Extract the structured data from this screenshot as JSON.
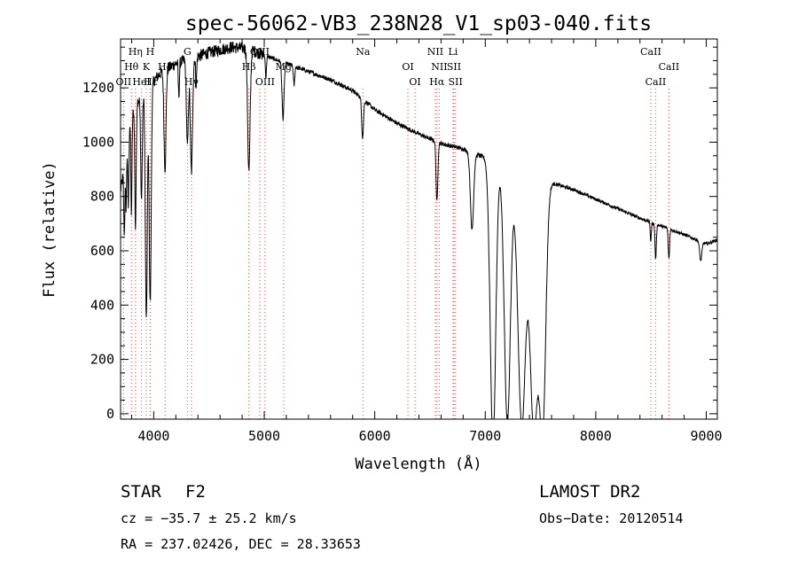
{
  "chart_data": {
    "type": "line",
    "title": "spec-56062-VB3_238N28_V1_sp03-040.fits",
    "xlabel": "Wavelength (Å)",
    "ylabel": "Flux (relative)",
    "xlim": [
      3700,
      9100
    ],
    "ylim": [
      -20,
      1380
    ],
    "x_ticks": [
      4000,
      5000,
      6000,
      7000,
      8000,
      9000
    ],
    "y_ticks": [
      0,
      200,
      400,
      600,
      800,
      1000,
      1200
    ],
    "grid": false,
    "continuum": [
      [
        3700,
        820
      ],
      [
        3730,
        900
      ],
      [
        3770,
        1060
      ],
      [
        3850,
        1150
      ],
      [
        3950,
        1200
      ],
      [
        4050,
        1250
      ],
      [
        4200,
        1290
      ],
      [
        4350,
        1310
      ],
      [
        4500,
        1330
      ],
      [
        4700,
        1350
      ],
      [
        4850,
        1345
      ],
      [
        5000,
        1320
      ],
      [
        5200,
        1290
      ],
      [
        5400,
        1260
      ],
      [
        5600,
        1230
      ],
      [
        5800,
        1190
      ],
      [
        6000,
        1120
      ],
      [
        6200,
        1070
      ],
      [
        6400,
        1030
      ],
      [
        6600,
        995
      ],
      [
        6800,
        975
      ],
      [
        6950,
        950
      ],
      [
        7100,
        935
      ],
      [
        7250,
        920
      ],
      [
        7500,
        880
      ],
      [
        7600,
        850
      ],
      [
        7800,
        825
      ],
      [
        8000,
        790
      ],
      [
        8200,
        755
      ],
      [
        8400,
        720
      ],
      [
        8600,
        690
      ],
      [
        8800,
        660
      ],
      [
        9000,
        625
      ],
      [
        9100,
        640
      ]
    ],
    "absorption": [
      [
        3734,
        250,
        5
      ],
      [
        3750,
        220,
        5
      ],
      [
        3770,
        300,
        5
      ],
      [
        3798,
        350,
        5
      ],
      [
        3835,
        450,
        6
      ],
      [
        3889,
        380,
        7
      ],
      [
        3933,
        850,
        9
      ],
      [
        3968,
        800,
        9
      ],
      [
        4102,
        360,
        9
      ],
      [
        4227,
        120,
        5
      ],
      [
        4305,
        320,
        9
      ],
      [
        4341,
        420,
        10
      ],
      [
        4384,
        100,
        5
      ],
      [
        4861,
        450,
        11
      ],
      [
        5015,
        80,
        5
      ],
      [
        5170,
        210,
        9
      ],
      [
        5270,
        70,
        6
      ],
      [
        5890,
        140,
        8
      ],
      [
        6563,
        220,
        8
      ],
      [
        6880,
        280,
        15
      ],
      [
        7070,
        1050,
        25
      ],
      [
        7200,
        960,
        28
      ],
      [
        7330,
        950,
        35
      ],
      [
        7440,
        950,
        35
      ],
      [
        7520,
        900,
        28
      ],
      [
        8498,
        70,
        5
      ],
      [
        8542,
        130,
        6
      ],
      [
        8662,
        110,
        6
      ],
      [
        8950,
        70,
        10
      ]
    ],
    "line_markers": [
      {
        "label": "OII",
        "x": 3727,
        "row": 3
      },
      {
        "label": "Hθ",
        "x": 3798,
        "row": 2
      },
      {
        "label": "Hη",
        "x": 3835,
        "row": 1
      },
      {
        "label": "HeI",
        "x": 3889,
        "row": 3
      },
      {
        "label": "K",
        "x": 3933,
        "row": 2
      },
      {
        "label": "H",
        "x": 3968,
        "row": 1
      },
      {
        "label": "Hδ",
        "x": 4102,
        "row": 2
      },
      {
        "label": "Hε",
        "x": 3970,
        "row": 3
      },
      {
        "label": "G",
        "x": 4305,
        "row": 1
      },
      {
        "label": "Hγ",
        "x": 4341,
        "row": 3
      },
      {
        "label": "Hβ",
        "x": 4861,
        "row": 2
      },
      {
        "label": "OIII",
        "x": 4959,
        "row": 1
      },
      {
        "label": "OIII",
        "x": 5007,
        "row": 3
      },
      {
        "label": "Mg",
        "x": 5175,
        "row": 2
      },
      {
        "label": "Na",
        "x": 5893,
        "row": 1
      },
      {
        "label": "OI",
        "x": 6300,
        "row": 2
      },
      {
        "label": "OI",
        "x": 6364,
        "row": 3
      },
      {
        "label": "NII",
        "x": 6548,
        "row": 1
      },
      {
        "label": "NII",
        "x": 6584,
        "row": 2
      },
      {
        "label": "Hα",
        "x": 6563,
        "row": 3
      },
      {
        "label": "Li",
        "x": 6708,
        "row": 1
      },
      {
        "label": "SII",
        "x": 6717,
        "row": 2
      },
      {
        "label": "SII",
        "x": 6731,
        "row": 3
      },
      {
        "label": "CaII",
        "x": 8498,
        "row": 1
      },
      {
        "label": "CaII",
        "x": 8662,
        "row": 2
      },
      {
        "label": "CaII",
        "x": 8542,
        "row": 3
      }
    ]
  },
  "info": {
    "class_label": "STAR",
    "subclass": "F2",
    "survey": "LAMOST DR2",
    "cz_text": "cz = −35.7 ± 25.2 km/s",
    "obs_date": "Obs−Date: 20120514",
    "coords": "RA = 237.02426, DEC =  28.33653"
  },
  "colors": {
    "axis": "#000000",
    "spectrum": "#000000",
    "marker": "#e0504a",
    "background": "#ffffff"
  }
}
